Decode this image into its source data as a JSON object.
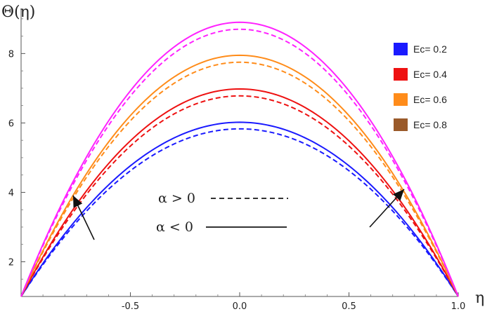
{
  "chart_data": {
    "type": "line",
    "title": "",
    "xlabel": "η",
    "ylabel": "Θ(η)",
    "xlim": [
      -1.0,
      1.0
    ],
    "ylim": [
      1.0,
      9.3
    ],
    "x_ticks": [
      -0.5,
      0.0,
      0.5,
      1.0
    ],
    "x_tick_labels": [
      "-0.5",
      "0.0",
      "0.5",
      "1.0"
    ],
    "y_ticks": [
      2,
      4,
      6,
      8
    ],
    "y_tick_labels": [
      "2",
      "4",
      "6",
      "8"
    ],
    "grid": false,
    "legend_position": "top-right",
    "series": [
      {
        "name": "Ec= 0.2",
        "color": "#1a1aff",
        "peak_solid": 6.02,
        "peak_dashed": 5.83
      },
      {
        "name": "Ec= 0.4",
        "color": "#ee1111",
        "peak_solid": 6.98,
        "peak_dashed": 6.78
      },
      {
        "name": "Ec= 0.6",
        "color": "#ff8c1a",
        "peak_solid": 7.95,
        "peak_dashed": 7.75
      },
      {
        "name": "Ec= 0.8",
        "color": "#ff22ff",
        "legend_color": "#9a5a2a",
        "peak_solid": 8.9,
        "peak_dashed": 8.7
      }
    ],
    "boundary_value": 1.0,
    "line_styles": [
      {
        "label": "α > 0",
        "style": "dashed"
      },
      {
        "label": "α < 0",
        "style": "solid"
      }
    ],
    "annotations": [
      "increasing Ec arrow left",
      "increasing Ec arrow right"
    ]
  }
}
